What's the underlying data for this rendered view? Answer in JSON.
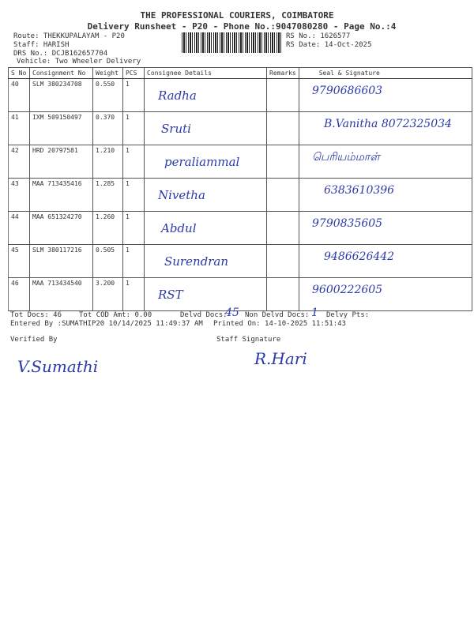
{
  "header": {
    "company": "THE PROFESSIONAL COURIERS, COIMBATORE",
    "title": "Delivery Runsheet - P20 - Phone No.:9047080280 - Page No.:4",
    "route": "Route: THEKKUPALAYAM - P20",
    "staff": "Staff: HARISH",
    "drs": "DRS No.: DCJB162657704",
    "vehicle": "Vehicle: Two Wheeler Delivery",
    "rs_no": "RS No.: 1626577",
    "rs_date": "RS Date: 14-Oct-2025"
  },
  "columns": [
    "S No",
    "Consignment No",
    "Weight",
    "PCS",
    "Consignee Details",
    "Remarks",
    "Seal & Signature"
  ],
  "rows": [
    {
      "sno": "40",
      "cn": "SLM 380234708",
      "wt": "0.550",
      "pcs": "1",
      "name_hw": "Radha",
      "sig_hw": "9790686603"
    },
    {
      "sno": "41",
      "cn": "IXM 509150497",
      "wt": "0.370",
      "pcs": "1",
      "name_hw": "Sruti",
      "sig_hw": "B.Vanitha 8072325034"
    },
    {
      "sno": "42",
      "cn": "HRD 20797581",
      "wt": "1.210",
      "pcs": "1",
      "name_hw": "peraliammal",
      "sig_hw": "பெரியம்மாள்"
    },
    {
      "sno": "43",
      "cn": "MAA 713435416",
      "wt": "1.285",
      "pcs": "1",
      "name_hw": "Nivetha",
      "sig_hw": "6383610396"
    },
    {
      "sno": "44",
      "cn": "MAA 651324270",
      "wt": "1.260",
      "pcs": "1",
      "name_hw": "Abdul",
      "sig_hw": "9790835605"
    },
    {
      "sno": "45",
      "cn": "SLM 380117216",
      "wt": "0.505",
      "pcs": "1",
      "name_hw": "Surendran",
      "sig_hw": "9486626442"
    },
    {
      "sno": "46",
      "cn": "MAA 713434540",
      "wt": "3.200",
      "pcs": "1",
      "name_hw": "RST",
      "sig_hw": "9600222605"
    }
  ],
  "footer": {
    "tot_docs": "Tot Docs:  46",
    "cod": "Tot COD Amt:    0.00",
    "delvd": "Delvd Docs:",
    "delvd_hw": "45",
    "non_delvd": "Non Delvd Docs:",
    "non_delvd_hw": "1",
    "pts": "Delvy Pts:",
    "entered": "Entered By :SUMATHIP20 10/14/2025 11:49:37 AM",
    "printed": "Printed On: 14-10-2025 11:51:43",
    "verified": "Verified By",
    "staff_sig": "Staff Signature",
    "verified_hw": "V.Sumathi",
    "staff_hw": "R.Hari"
  },
  "colors": {
    "ink": "#2a3aa8"
  }
}
